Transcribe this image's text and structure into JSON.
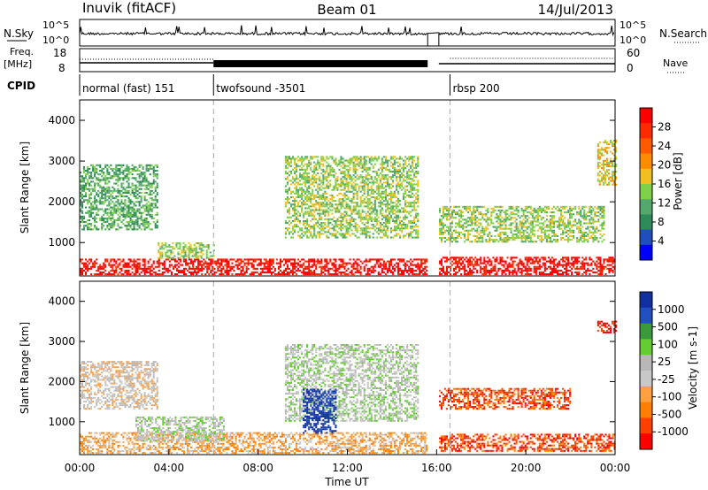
{
  "header": {
    "station": "Inuvik (fitACF)",
    "beam": "Beam 01",
    "date": "14/Jul/2013"
  },
  "top_panel_labels": {
    "nsky": "N.Sky",
    "nsearch": "N.Search",
    "freq_line1": "Freq.",
    "freq_line2": "[MHz]",
    "nave": "Nave",
    "cpid": "CPID"
  },
  "noise_axis": {
    "left_ticks": [
      "10^5",
      "10^0"
    ],
    "right_ticks": [
      "10^5",
      "10^0"
    ]
  },
  "freq_axis": {
    "left_ticks": [
      "18",
      "8"
    ],
    "right_ticks": [
      "60",
      "0"
    ]
  },
  "cpid_segments": [
    {
      "label": "normal (fast) 151",
      "start_hour": 0
    },
    {
      "label": "twofsound -3501",
      "start_hour": 6
    },
    {
      "label": "rbsp 200",
      "start_hour": 16.6
    }
  ],
  "data_gap_hours": [
    15.6,
    16.1
  ],
  "colors": {
    "power": [
      "#0000ff",
      "#1f4fbf",
      "#2e8b57",
      "#55a86b",
      "#7fd14a",
      "#f0c020",
      "#ff8c00",
      "#ff5a00",
      "#ff2a00",
      "#ff0000"
    ],
    "velocity": [
      "#1030a0",
      "#2050c0",
      "#3a9a3a",
      "#66cc33",
      "#b8b8b8",
      "#c8c8c8",
      "#ffa040",
      "#ff8000",
      "#ff4000",
      "#ff0000"
    ]
  },
  "chart_data": [
    {
      "type": "heatmap",
      "quantity": "power",
      "xlabel": "",
      "ylabel": "Slant Range [km]",
      "xlim": [
        0,
        24
      ],
      "ylim": [
        180,
        4500
      ],
      "yticks": [
        "1000",
        "2000",
        "3000",
        "4000"
      ],
      "colorbar_label": "Power [dB]",
      "colorbar_ticks": [
        "4",
        "8",
        "12",
        "16",
        "20",
        "24",
        "28"
      ],
      "echo_regions": [
        {
          "hours": [
            0,
            15.6
          ],
          "range_km": [
            200,
            600
          ],
          "level": "28"
        },
        {
          "hours": [
            0,
            3.5
          ],
          "range_km": [
            1300,
            2900
          ],
          "level": "8"
        },
        {
          "hours": [
            3.5,
            6
          ],
          "range_km": [
            600,
            1000
          ],
          "level": "12"
        },
        {
          "hours": [
            9.2,
            15.2
          ],
          "range_km": [
            1100,
            3100
          ],
          "level": "12"
        },
        {
          "hours": [
            16.1,
            24
          ],
          "range_km": [
            200,
            650
          ],
          "level": "28"
        },
        {
          "hours": [
            16.1,
            23.5
          ],
          "range_km": [
            1000,
            1900
          ],
          "level": "12"
        },
        {
          "hours": [
            23.2,
            24
          ],
          "range_km": [
            2400,
            3500
          ],
          "level": "16"
        }
      ]
    },
    {
      "type": "heatmap",
      "quantity": "velocity",
      "xlabel": "Time UT",
      "ylabel": "Slant Range [km]",
      "xlim": [
        0,
        24
      ],
      "ylim": [
        180,
        4500
      ],
      "xticks": [
        "00:00",
        "04:00",
        "08:00",
        "12:00",
        "16:00",
        "20:00",
        "00:00"
      ],
      "yticks": [
        "1000",
        "2000",
        "3000",
        "4000"
      ],
      "colorbar_label": "Velocity [m s-1]",
      "colorbar_ticks": [
        "1000",
        "500",
        "100",
        "25",
        "-25",
        "-100",
        "-500",
        "-1000"
      ],
      "echo_regions": [
        {
          "hours": [
            0,
            15.6
          ],
          "range_km": [
            200,
            700
          ],
          "level": "-100"
        },
        {
          "hours": [
            2.5,
            6.5
          ],
          "range_km": [
            500,
            1100
          ],
          "level": "25"
        },
        {
          "hours": [
            0,
            3.5
          ],
          "range_km": [
            1300,
            2500
          ],
          "level": "-25"
        },
        {
          "hours": [
            9.2,
            15.2
          ],
          "range_km": [
            1000,
            2900
          ],
          "level": "25"
        },
        {
          "hours": [
            10,
            11.5
          ],
          "range_km": [
            700,
            1800
          ],
          "level": "1000"
        },
        {
          "hours": [
            16.1,
            24
          ],
          "range_km": [
            250,
            700
          ],
          "level": "-500"
        },
        {
          "hours": [
            16.1,
            22
          ],
          "range_km": [
            1300,
            1800
          ],
          "level": "-500"
        },
        {
          "hours": [
            23.2,
            24
          ],
          "range_km": [
            3200,
            3500
          ],
          "level": "-1000"
        }
      ]
    }
  ]
}
